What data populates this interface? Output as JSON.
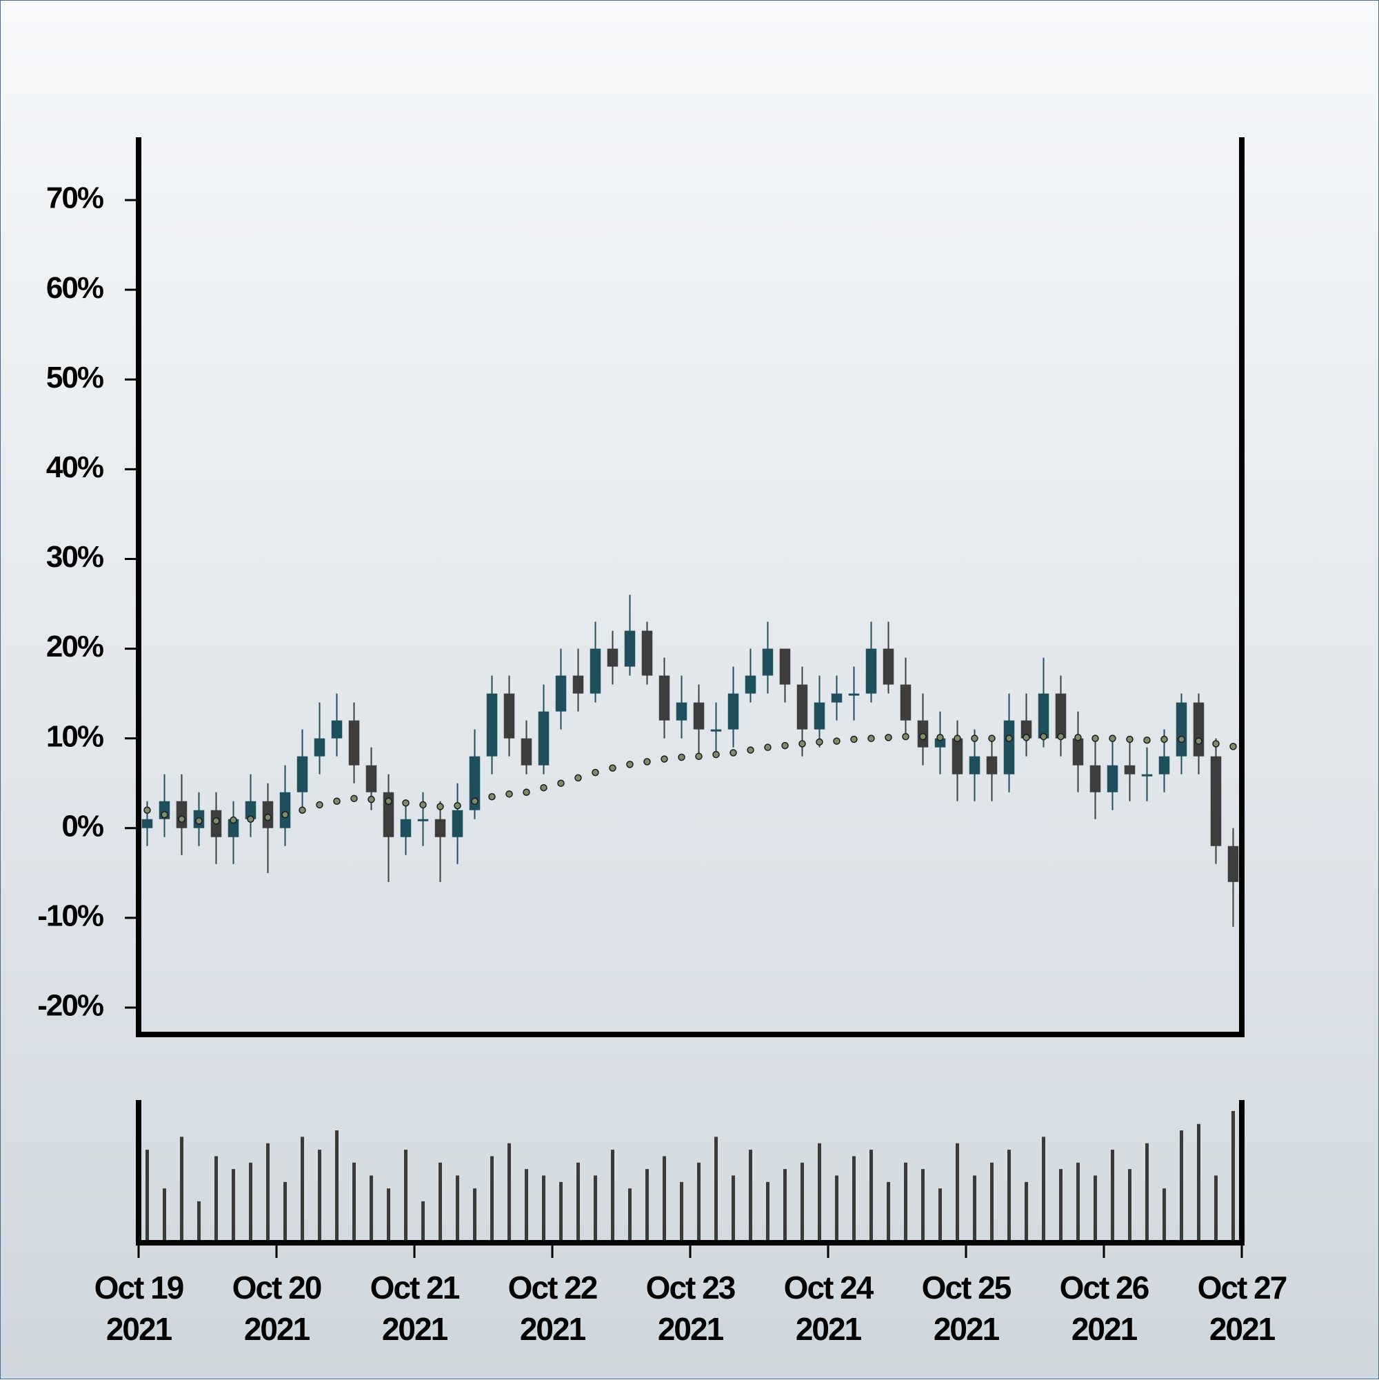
{
  "chart_data": {
    "type": "candlestick",
    "x": [
      "2021-10-19T00:00",
      "2021-10-19T03:00",
      "2021-10-19T06:00",
      "2021-10-19T09:00",
      "2021-10-19T12:00",
      "2021-10-19T15:00",
      "2021-10-19T18:00",
      "2021-10-19T21:00",
      "2021-10-20T00:00",
      "2021-10-20T03:00",
      "2021-10-20T06:00",
      "2021-10-20T09:00",
      "2021-10-20T12:00",
      "2021-10-20T15:00",
      "2021-10-20T18:00",
      "2021-10-20T21:00",
      "2021-10-21T00:00",
      "2021-10-21T03:00",
      "2021-10-21T06:00",
      "2021-10-21T09:00",
      "2021-10-21T12:00",
      "2021-10-21T15:00",
      "2021-10-21T18:00",
      "2021-10-21T21:00",
      "2021-10-22T00:00",
      "2021-10-22T03:00",
      "2021-10-22T06:00",
      "2021-10-22T09:00",
      "2021-10-22T12:00",
      "2021-10-22T15:00",
      "2021-10-22T18:00",
      "2021-10-22T21:00",
      "2021-10-23T00:00",
      "2021-10-23T03:00",
      "2021-10-23T06:00",
      "2021-10-23T09:00",
      "2021-10-23T12:00",
      "2021-10-23T15:00",
      "2021-10-23T18:00",
      "2021-10-23T21:00",
      "2021-10-24T00:00",
      "2021-10-24T03:00",
      "2021-10-24T06:00",
      "2021-10-24T09:00",
      "2021-10-24T12:00",
      "2021-10-24T15:00",
      "2021-10-24T18:00",
      "2021-10-24T21:00",
      "2021-10-25T00:00",
      "2021-10-25T03:00",
      "2021-10-25T06:00",
      "2021-10-25T09:00",
      "2021-10-25T12:00",
      "2021-10-25T15:00",
      "2021-10-25T18:00",
      "2021-10-25T21:00",
      "2021-10-26T00:00",
      "2021-10-26T03:00",
      "2021-10-26T06:00",
      "2021-10-26T09:00",
      "2021-10-26T12:00",
      "2021-10-26T15:00",
      "2021-10-26T18:00",
      "2021-10-26T21:00"
    ],
    "open": [
      0,
      1,
      3,
      0,
      2,
      -1,
      1,
      3,
      0,
      4,
      8,
      10,
      12,
      7,
      4,
      -1,
      1,
      1,
      -1,
      2,
      8,
      15,
      10,
      7,
      13,
      17,
      15,
      20,
      18,
      22,
      17,
      12,
      14,
      11,
      11,
      15,
      17,
      20,
      16,
      11,
      14,
      15,
      15,
      20,
      16,
      12,
      9,
      10,
      6,
      8,
      6,
      12,
      10,
      15,
      10,
      7,
      4,
      7,
      6,
      6,
      8,
      14,
      8,
      -2
    ],
    "high": [
      3,
      6,
      6,
      4,
      4,
      3,
      6,
      5,
      7,
      11,
      14,
      15,
      14,
      9,
      6,
      3,
      4,
      3,
      5,
      11,
      17,
      17,
      12,
      16,
      20,
      20,
      23,
      22,
      26,
      23,
      19,
      17,
      16,
      14,
      18,
      20,
      23,
      20,
      18,
      17,
      17,
      18,
      23,
      23,
      19,
      15,
      13,
      12,
      11,
      10,
      15,
      15,
      19,
      17,
      13,
      10,
      10,
      10,
      9,
      11,
      15,
      15,
      10,
      0
    ],
    "low": [
      -2,
      -1,
      -3,
      -2,
      -4,
      -4,
      -1,
      -5,
      -2,
      2,
      6,
      8,
      5,
      2,
      -6,
      -3,
      -2,
      -6,
      -4,
      1,
      6,
      8,
      6,
      6,
      11,
      13,
      14,
      16,
      17,
      16,
      10,
      10,
      8,
      8,
      9,
      14,
      15,
      14,
      8,
      9,
      12,
      12,
      14,
      15,
      10,
      7,
      6,
      3,
      3,
      3,
      4,
      8,
      9,
      8,
      4,
      1,
      2,
      3,
      3,
      4,
      6,
      6,
      -4,
      -11
    ],
    "close": [
      1,
      3,
      0,
      2,
      -1,
      1,
      3,
      0,
      4,
      8,
      10,
      12,
      7,
      4,
      -1,
      1,
      1,
      -1,
      2,
      8,
      15,
      10,
      7,
      13,
      17,
      15,
      20,
      18,
      22,
      17,
      12,
      14,
      11,
      11,
      15,
      17,
      20,
      16,
      11,
      14,
      15,
      15,
      20,
      16,
      12,
      9,
      10,
      6,
      8,
      6,
      12,
      10,
      15,
      10,
      7,
      4,
      7,
      6,
      6,
      8,
      14,
      8,
      -2,
      -6
    ],
    "volume": [
      70,
      40,
      80,
      30,
      65,
      55,
      60,
      75,
      45,
      80,
      70,
      85,
      60,
      50,
      40,
      70,
      30,
      60,
      50,
      40,
      65,
      75,
      55,
      50,
      45,
      60,
      50,
      70,
      40,
      55,
      65,
      45,
      60,
      80,
      50,
      70,
      45,
      55,
      60,
      75,
      50,
      65,
      70,
      45,
      60,
      55,
      40,
      75,
      50,
      60,
      70,
      45,
      80,
      55,
      60,
      50,
      70,
      55,
      75,
      40,
      85,
      90,
      50,
      100
    ],
    "ma": {
      "color": "#7d8c6a",
      "values": [
        2,
        1.5,
        1,
        0.8,
        0.8,
        0.9,
        1,
        1.2,
        1.5,
        2,
        2.6,
        3,
        3.3,
        3.2,
        3,
        2.8,
        2.6,
        2.4,
        2.5,
        3,
        3.5,
        3.8,
        4,
        4.5,
        5,
        5.6,
        6.2,
        6.7,
        7.1,
        7.4,
        7.7,
        7.9,
        8,
        8.2,
        8.4,
        8.7,
        9,
        9.2,
        9.4,
        9.6,
        9.7,
        9.9,
        10,
        10.1,
        10.2,
        10.2,
        10.1,
        10,
        10,
        10,
        10,
        10.1,
        10.2,
        10.2,
        10.1,
        10,
        10,
        9.9,
        9.8,
        9.9,
        9.9,
        9.7,
        9.4,
        9.1
      ]
    },
    "up_color": "#1f4f5c",
    "down_color": "#3d3d3d",
    "volume_color": "#3a3a3a",
    "xlim": [
      "2021-10-19T00:00",
      "2021-10-27T00:00"
    ],
    "xticks": [
      {
        "value": "2021-10-19T00:00",
        "label": "Oct 19\n2021"
      },
      {
        "value": "2021-10-20T00:00",
        "label": "Oct 20\n2021"
      },
      {
        "value": "2021-10-21T00:00",
        "label": "Oct 21\n2021"
      },
      {
        "value": "2021-10-22T00:00",
        "label": "Oct 22\n2021"
      },
      {
        "value": "2021-10-23T00:00",
        "label": "Oct 23\n2021"
      },
      {
        "value": "2021-10-24T00:00",
        "label": "Oct 24\n2021"
      },
      {
        "value": "2021-10-25T00:00",
        "label": "Oct 25\n2021"
      },
      {
        "value": "2021-10-26T00:00",
        "label": "Oct 26\n2021"
      },
      {
        "value": "2021-10-27T00:00",
        "label": "Oct 27\n2021"
      }
    ],
    "ylim": [
      -23,
      77
    ],
    "yticks": [
      {
        "value": -20,
        "label": "-20%"
      },
      {
        "value": -10,
        "label": "-10%"
      },
      {
        "value": 0,
        "label": "0%"
      },
      {
        "value": 10,
        "label": "10%"
      },
      {
        "value": 20,
        "label": "20%"
      },
      {
        "value": 30,
        "label": "30%"
      },
      {
        "value": 40,
        "label": "40%"
      },
      {
        "value": 50,
        "label": "50%"
      },
      {
        "value": 60,
        "label": "60%"
      },
      {
        "value": 70,
        "label": "70%"
      }
    ]
  }
}
